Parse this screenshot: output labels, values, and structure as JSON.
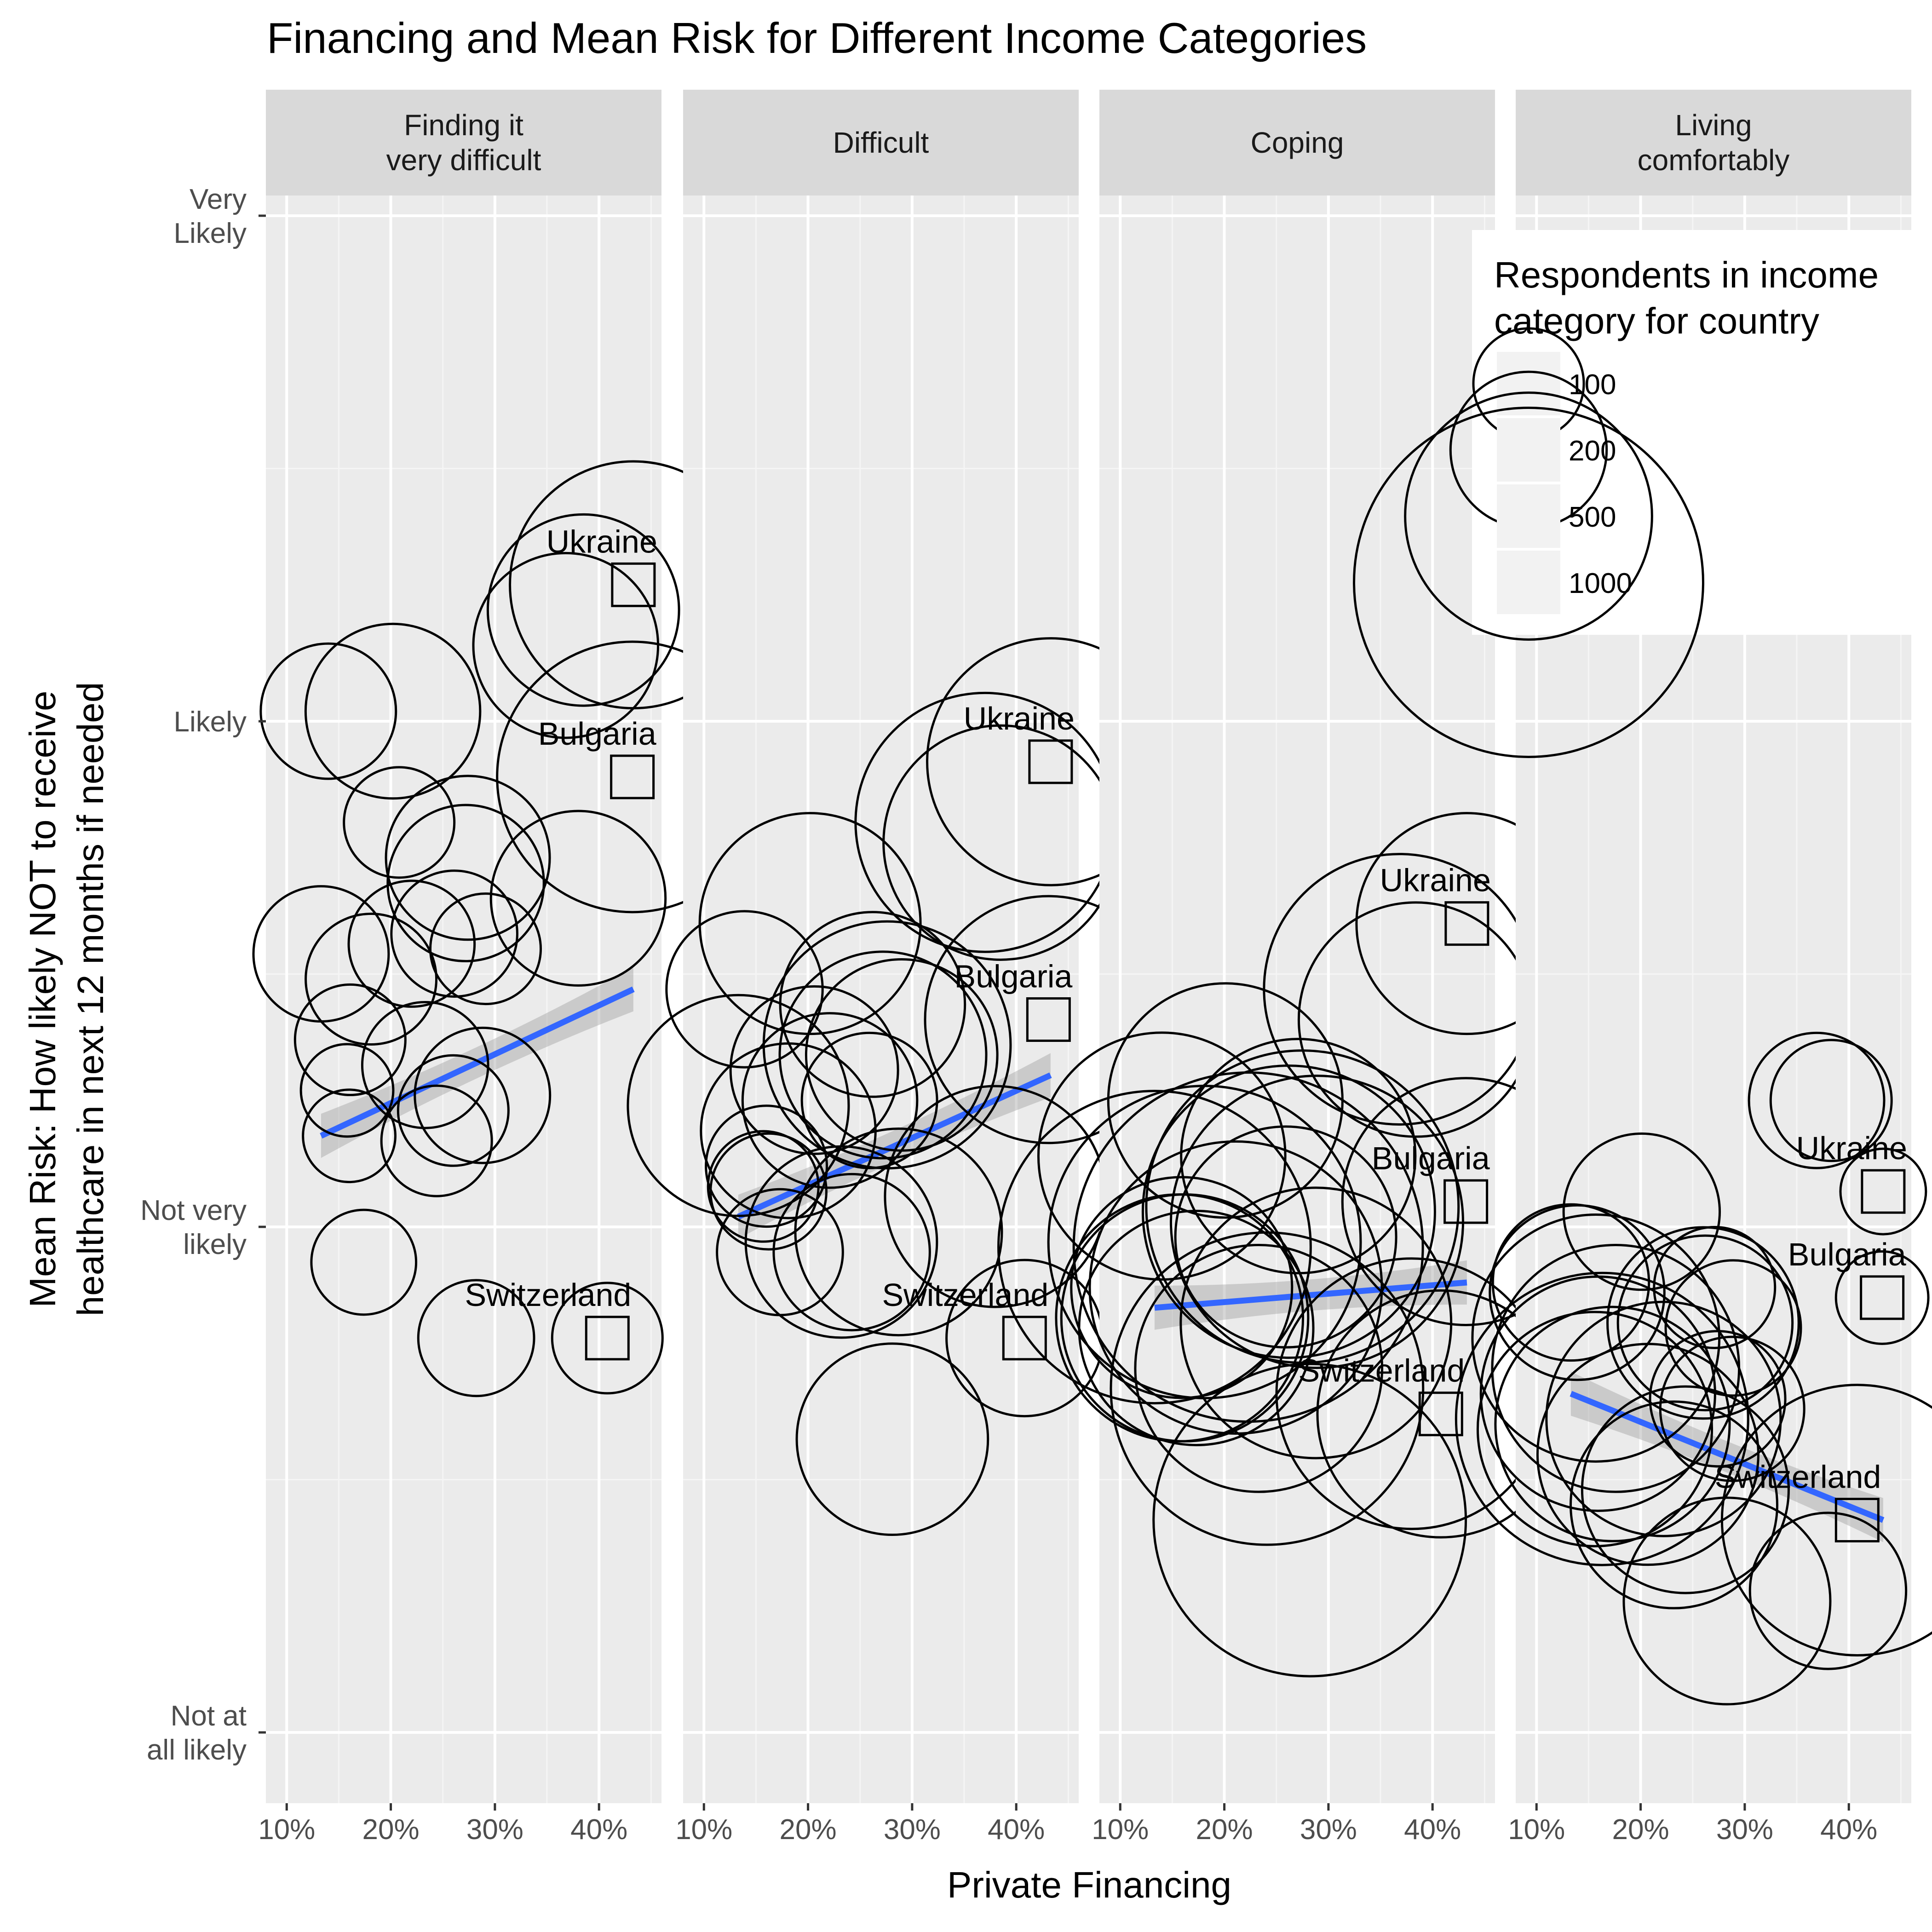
{
  "chart_data": {
    "type": "scatter",
    "title": "Financing and Mean Risk for Different Income Categories",
    "xlabel": "Private Financing",
    "ylabel": [
      "Mean Risk: How likely NOT to receive",
      "healthcare in next 12 months if needed"
    ],
    "x_ticks": [
      "10%",
      "20%",
      "30%",
      "40%"
    ],
    "x_tick_values": [
      10,
      20,
      30,
      40
    ],
    "xlim": [
      8,
      46
    ],
    "y_ticks": [
      {
        "value": 4,
        "lines": [
          "Very",
          "Likely"
        ]
      },
      {
        "value": 3,
        "lines": [
          "Likely"
        ]
      },
      {
        "value": 2,
        "lines": [
          "Not very",
          "likely"
        ]
      },
      {
        "value": 1,
        "lines": [
          "Not at",
          "all likely"
        ]
      }
    ],
    "ylim": [
      0.86,
      4.04
    ],
    "grid": true,
    "legend": {
      "title": [
        "Respondents in income",
        "category for country"
      ],
      "position": "top-right",
      "entries": [
        {
          "label": "100",
          "value": 100
        },
        {
          "label": "200",
          "value": 200
        },
        {
          "label": "500",
          "value": 500
        },
        {
          "label": "1000",
          "value": 1000
        }
      ]
    },
    "panels": [
      {
        "label": [
          "Finding it",
          "very difficult"
        ],
        "points": [
          {
            "x": 14,
            "y": 3.02,
            "n": 150
          },
          {
            "x": 20.2,
            "y": 3.02,
            "n": 250
          },
          {
            "x": 36.8,
            "y": 3.15,
            "n": 280
          },
          {
            "x": 38.5,
            "y": 3.22,
            "n": 300
          },
          {
            "x": 20.8,
            "y": 2.8,
            "n": 100
          },
          {
            "x": 27.4,
            "y": 2.73,
            "n": 220
          },
          {
            "x": 27.2,
            "y": 2.68,
            "n": 200
          },
          {
            "x": 38.0,
            "y": 2.65,
            "n": 250
          },
          {
            "x": 13.3,
            "y": 2.54,
            "n": 150
          },
          {
            "x": 22.0,
            "y": 2.56,
            "n": 130
          },
          {
            "x": 26.1,
            "y": 2.58,
            "n": 130
          },
          {
            "x": 29.1,
            "y": 2.55,
            "n": 100
          },
          {
            "x": 18.1,
            "y": 2.49,
            "n": 140
          },
          {
            "x": 16.1,
            "y": 2.37,
            "n": 100
          },
          {
            "x": 23.3,
            "y": 2.32,
            "n": 130
          },
          {
            "x": 15.8,
            "y": 2.27,
            "n": 70
          },
          {
            "x": 28.8,
            "y": 2.26,
            "n": 150
          },
          {
            "x": 26.0,
            "y": 2.23,
            "n": 100
          },
          {
            "x": 16.0,
            "y": 2.18,
            "n": 70
          },
          {
            "x": 24.4,
            "y": 2.17,
            "n": 100
          },
          {
            "x": 17.4,
            "y": 1.93,
            "n": 90
          },
          {
            "x": 28.2,
            "y": 1.78,
            "n": 110
          }
        ],
        "highlights": [
          {
            "country": "Ukraine",
            "x": 43.3,
            "y": 3.27,
            "n": 500
          },
          {
            "country": "Bulgaria",
            "x": 43.2,
            "y": 2.89,
            "n": 600
          },
          {
            "country": "Switzerland",
            "x": 40.8,
            "y": 1.78,
            "n": 100
          }
        ],
        "trend": {
          "x": [
            13.3,
            43.3
          ],
          "y": [
            2.18,
            2.47
          ]
        }
      },
      {
        "label": [
          "Difficult"
        ],
        "points": [
          {
            "x": 37.0,
            "y": 2.8,
            "n": 550
          },
          {
            "x": 38.5,
            "y": 2.76,
            "n": 450
          },
          {
            "x": 20.2,
            "y": 2.6,
            "n": 400
          },
          {
            "x": 13.9,
            "y": 2.47,
            "n": 200
          },
          {
            "x": 26.2,
            "y": 2.44,
            "n": 280
          },
          {
            "x": 27.2,
            "y": 2.34,
            "n": 350
          },
          {
            "x": 27.6,
            "y": 2.36,
            "n": 500
          },
          {
            "x": 29.0,
            "y": 2.34,
            "n": 300
          },
          {
            "x": 20.6,
            "y": 2.31,
            "n": 230
          },
          {
            "x": 22.1,
            "y": 2.25,
            "n": 250
          },
          {
            "x": 25.9,
            "y": 2.25,
            "n": 150
          },
          {
            "x": 13.3,
            "y": 2.24,
            "n": 400
          },
          {
            "x": 18.1,
            "y": 2.19,
            "n": 250
          },
          {
            "x": 16.0,
            "y": 2.12,
            "n": 120
          },
          {
            "x": 15.7,
            "y": 2.08,
            "n": 100
          },
          {
            "x": 16.2,
            "y": 2.07,
            "n": 110
          },
          {
            "x": 38.0,
            "y": 2.06,
            "n": 400
          },
          {
            "x": 28.7,
            "y": 1.99,
            "n": 350
          },
          {
            "x": 23.2,
            "y": 1.97,
            "n": 300
          },
          {
            "x": 24.2,
            "y": 1.95,
            "n": 200
          },
          {
            "x": 17.3,
            "y": 1.95,
            "n": 130
          },
          {
            "x": 28.1,
            "y": 1.58,
            "n": 300
          }
        ],
        "highlights": [
          {
            "country": "Ukraine",
            "x": 43.3,
            "y": 2.92,
            "n": 500
          },
          {
            "country": "Bulgaria",
            "x": 43.1,
            "y": 2.41,
            "n": 500
          },
          {
            "country": "Switzerland",
            "x": 40.8,
            "y": 1.78,
            "n": 200
          }
        ],
        "trend": {
          "x": [
            13.3,
            43.3
          ],
          "y": [
            2.02,
            2.3
          ]
        }
      },
      {
        "label": [
          "Coping"
        ],
        "points": [
          {
            "x": 36.8,
            "y": 2.47,
            "n": 600
          },
          {
            "x": 38.4,
            "y": 2.41,
            "n": 450
          },
          {
            "x": 20.1,
            "y": 2.25,
            "n": 450
          },
          {
            "x": 14.0,
            "y": 2.14,
            "n": 500
          },
          {
            "x": 27.1,
            "y": 2.14,
            "n": 450
          },
          {
            "x": 27.5,
            "y": 2.04,
            "n": 800
          },
          {
            "x": 26.2,
            "y": 2.03,
            "n": 700
          },
          {
            "x": 28.9,
            "y": 2.01,
            "n": 700
          },
          {
            "x": 25.9,
            "y": 1.98,
            "n": 400
          },
          {
            "x": 18.1,
            "y": 1.97,
            "n": 800
          },
          {
            "x": 22.3,
            "y": 1.96,
            "n": 1000
          },
          {
            "x": 13.3,
            "y": 1.96,
            "n": 800
          },
          {
            "x": 21.1,
            "y": 1.88,
            "n": 700
          },
          {
            "x": 15.9,
            "y": 1.88,
            "n": 400
          },
          {
            "x": 15.7,
            "y": 1.82,
            "n": 500
          },
          {
            "x": 16.2,
            "y": 1.82,
            "n": 500
          },
          {
            "x": 17.3,
            "y": 1.8,
            "n": 450
          },
          {
            "x": 28.8,
            "y": 1.81,
            "n": 600
          },
          {
            "x": 23.3,
            "y": 1.72,
            "n": 500
          },
          {
            "x": 24.1,
            "y": 1.68,
            "n": 800
          },
          {
            "x": 38.0,
            "y": 1.67,
            "n": 600
          },
          {
            "x": 28.2,
            "y": 1.42,
            "n": 800
          }
        ],
        "highlights": [
          {
            "country": "Ukraine",
            "x": 43.3,
            "y": 2.6,
            "n": 400
          },
          {
            "country": "Bulgaria",
            "x": 43.2,
            "y": 2.05,
            "n": 500
          },
          {
            "country": "Switzerland",
            "x": 40.8,
            "y": 1.63,
            "n": 500
          }
        ],
        "trend": {
          "x": [
            13.3,
            43.3
          ],
          "y": [
            1.84,
            1.89
          ]
        }
      },
      {
        "label": [
          "Living",
          "comfortably"
        ],
        "points": [
          {
            "x": 36.9,
            "y": 2.25,
            "n": 150
          },
          {
            "x": 38.3,
            "y": 2.25,
            "n": 120
          },
          {
            "x": 20.1,
            "y": 2.03,
            "n": 200
          },
          {
            "x": 13.3,
            "y": 1.89,
            "n": 200
          },
          {
            "x": 13.9,
            "y": 1.87,
            "n": 250
          },
          {
            "x": 27.1,
            "y": 1.88,
            "n": 120
          },
          {
            "x": 26.0,
            "y": 1.81,
            "n": 300
          },
          {
            "x": 26.2,
            "y": 1.81,
            "n": 250
          },
          {
            "x": 28.9,
            "y": 1.8,
            "n": 150
          },
          {
            "x": 15.7,
            "y": 1.78,
            "n": 500
          },
          {
            "x": 17.6,
            "y": 1.72,
            "n": 500
          },
          {
            "x": 15.9,
            "y": 1.67,
            "n": 450
          },
          {
            "x": 27.4,
            "y": 1.66,
            "n": 150
          },
          {
            "x": 28.8,
            "y": 1.64,
            "n": 170
          },
          {
            "x": 16.3,
            "y": 1.62,
            "n": 700
          },
          {
            "x": 22.2,
            "y": 1.62,
            "n": 450
          },
          {
            "x": 17.3,
            "y": 1.61,
            "n": 450
          },
          {
            "x": 15.6,
            "y": 1.6,
            "n": 450
          },
          {
            "x": 20.7,
            "y": 1.55,
            "n": 400
          },
          {
            "x": 24.3,
            "y": 1.48,
            "n": 350
          },
          {
            "x": 23.2,
            "y": 1.45,
            "n": 350
          },
          {
            "x": 38.0,
            "y": 1.28,
            "n": 200
          },
          {
            "x": 28.3,
            "y": 1.26,
            "n": 350
          }
        ],
        "highlights": [
          {
            "country": "Ukraine",
            "x": 43.3,
            "y": 2.07,
            "n": 60
          },
          {
            "country": "Bulgaria",
            "x": 43.2,
            "y": 1.86,
            "n": 70
          },
          {
            "country": "Switzerland",
            "x": 40.8,
            "y": 1.42,
            "n": 600
          }
        ],
        "trend": {
          "x": [
            13.3,
            43.3
          ],
          "y": [
            1.67,
            1.42
          ]
        }
      }
    ]
  }
}
